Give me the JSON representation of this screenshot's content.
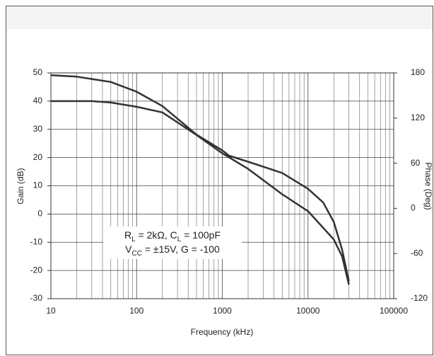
{
  "chart_data": {
    "type": "line",
    "x_label": "Frequency (kHz)",
    "y_label": "Gain (dB)",
    "y2_label": "Phase (Deg)",
    "xlim": [
      10,
      100000
    ],
    "xticks": [
      10,
      100,
      1000,
      10000,
      100000
    ],
    "xscale": "log",
    "ylim": [
      -30,
      50
    ],
    "yticks": [
      -30,
      -20,
      -10,
      0,
      10,
      20,
      30,
      40,
      50
    ],
    "y2lim": [
      -120,
      180
    ],
    "y2ticks": [
      -120,
      -60,
      0,
      60,
      120,
      180
    ],
    "grid": true,
    "series": [
      {
        "name": "Gain",
        "color": "#333333",
        "x": [
          10,
          30,
          50,
          100,
          200,
          500,
          1000,
          2000,
          5000,
          10000,
          20000,
          25000,
          30000
        ],
        "values": [
          40,
          40,
          39.5,
          38,
          36,
          28,
          21.5,
          16,
          7,
          1,
          -9,
          -15,
          -25
        ]
      },
      {
        "name": "Phase",
        "color": "#333333",
        "axis": "y2",
        "x": [
          10,
          20,
          50,
          100,
          200,
          500,
          1000,
          1200,
          2000,
          5000,
          10000,
          15000,
          20000,
          25000,
          30000
        ],
        "values": [
          177,
          175,
          168,
          155,
          136,
          98,
          77,
          70,
          62,
          47,
          26,
          8,
          -18,
          -55,
          -97
        ]
      }
    ],
    "annotation": [
      [
        {
          "text": "R"
        },
        {
          "text": "L",
          "sub": true
        },
        {
          "text": " = 2kΩ, C"
        },
        {
          "text": "L",
          "sub": true
        },
        {
          "text": " = 100pF"
        }
      ],
      [
        {
          "text": "V"
        },
        {
          "text": "CC",
          "sub": true
        },
        {
          "text": " = ±15V, G = -100"
        }
      ]
    ]
  }
}
